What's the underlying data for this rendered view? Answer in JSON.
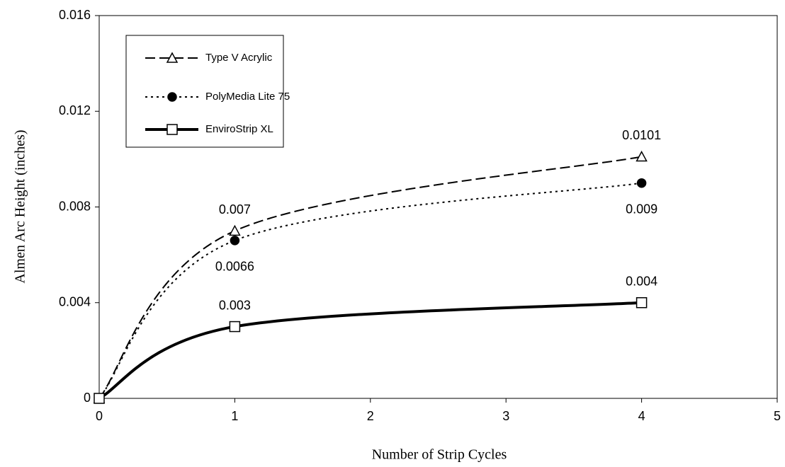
{
  "chart_data": {
    "type": "line",
    "xlabel": "Number of Strip Cycles",
    "ylabel": "Almen Arc Height (inches)",
    "xlim": [
      0,
      5
    ],
    "xticks": [
      0,
      1,
      2,
      3,
      4,
      5
    ],
    "ylim": [
      0,
      0.016
    ],
    "yticks": [
      0,
      0.004,
      0.008,
      0.012,
      0.016
    ],
    "grid": false,
    "legend": "upper left",
    "series": [
      {
        "name": "Type V Acrylic",
        "color": "#000000",
        "dash": "dashed",
        "marker": "triangle",
        "label_position": "above",
        "x": [
          0,
          1,
          4
        ],
        "values": [
          0,
          0.007,
          0.0101
        ],
        "value_labels": [
          null,
          "0.007",
          "0.0101"
        ]
      },
      {
        "name": "PolyMedia Lite 75",
        "color": "#000000",
        "dash": "dotted",
        "marker": "circle",
        "label_position": "below",
        "x": [
          0,
          1,
          4
        ],
        "values": [
          0,
          0.0066,
          0.009
        ],
        "value_labels": [
          null,
          "0.0066",
          "0.009"
        ]
      },
      {
        "name": "EnviroStrip XL",
        "color": "#000000",
        "dash": "solid",
        "marker": "square",
        "label_position": "above",
        "x": [
          0,
          1,
          4
        ],
        "values": [
          0,
          0.003,
          0.004
        ],
        "value_labels": [
          null,
          "0.003",
          "0.004"
        ]
      }
    ]
  }
}
